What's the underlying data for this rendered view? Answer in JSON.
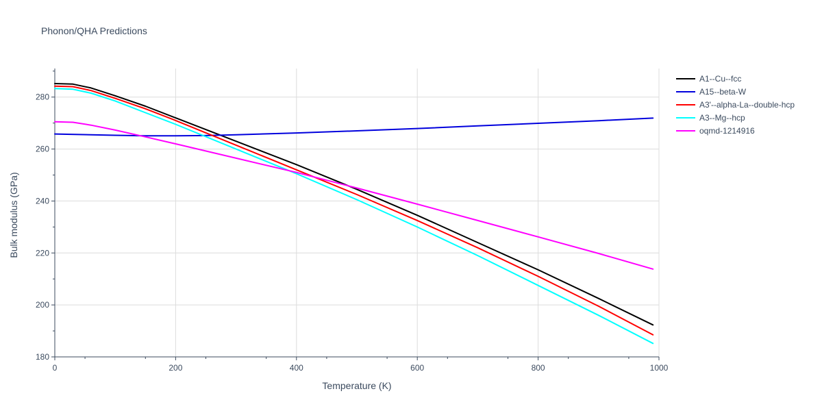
{
  "chart_data": {
    "type": "line",
    "title": "Phonon/QHA Predictions",
    "xlabel": "Temperature (K)",
    "ylabel": "Bulk modulus (GPa)",
    "xlim": [
      0,
      1000
    ],
    "ylim": [
      180,
      291
    ],
    "xticks": [
      0,
      200,
      400,
      600,
      800,
      1000
    ],
    "yticks": [
      180,
      200,
      220,
      240,
      260,
      280
    ],
    "grid": true,
    "legend_position": "top-right",
    "series": [
      {
        "name": "A1--Cu--fcc",
        "color": "#000000",
        "x": [
          0,
          30,
          60,
          100,
          150,
          200,
          300,
          400,
          500,
          600,
          700,
          800,
          900,
          990
        ],
        "y": [
          285.2,
          285,
          283.5,
          280.5,
          276.5,
          272,
          263,
          254,
          244.5,
          234.5,
          224,
          213.5,
          202.5,
          192.3
        ]
      },
      {
        "name": "A15--beta-W",
        "color": "#0000dd",
        "x": [
          0,
          100,
          150,
          200,
          250,
          300,
          400,
          500,
          600,
          700,
          800,
          900,
          990
        ],
        "y": [
          265.8,
          265.3,
          265.1,
          265.1,
          265.2,
          265.5,
          266.2,
          267,
          267.9,
          268.9,
          269.9,
          270.9,
          271.9
        ]
      },
      {
        "name": "A3'--alpha-La--double-hcp",
        "color": "#ff0000",
        "x": [
          0,
          30,
          60,
          100,
          150,
          200,
          300,
          400,
          500,
          600,
          700,
          800,
          900,
          990
        ],
        "y": [
          284.2,
          284,
          282.5,
          279.5,
          275.5,
          271,
          261.5,
          252,
          242.5,
          232.5,
          222,
          211,
          199.5,
          188.5
        ]
      },
      {
        "name": "A3--Mg--hcp",
        "color": "#00ffff",
        "x": [
          0,
          30,
          60,
          100,
          150,
          200,
          300,
          400,
          500,
          600,
          700,
          800,
          900,
          990
        ],
        "y": [
          283.3,
          283,
          281.5,
          278.5,
          274,
          269.5,
          260,
          250.5,
          240.5,
          230,
          219,
          207.5,
          196,
          185.2
        ]
      },
      {
        "name": "oqmd-1214916",
        "color": "#ff00ff",
        "x": [
          0,
          30,
          60,
          100,
          150,
          200,
          300,
          400,
          500,
          600,
          700,
          800,
          900,
          990
        ],
        "y": [
          270.5,
          270.3,
          269.2,
          267.3,
          264.7,
          262,
          256.5,
          251,
          245,
          238.8,
          232.5,
          226.2,
          219.8,
          213.8
        ]
      }
    ]
  }
}
